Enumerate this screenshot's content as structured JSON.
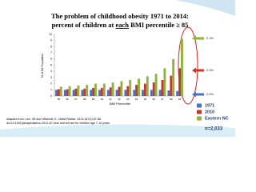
{
  "chart_data": {
    "type": "bar",
    "title_line1": "The problem of childhood obesity 1971 to 2014:",
    "title_line2_pre": "percent of children at ",
    "title_line2_emph": "each",
    "title_line2_post": " BMI percentile ≥ 85",
    "y_label": "% of the Population",
    "x_label": "BMI Percentile",
    "categories": [
      "85",
      "86",
      "87",
      "88",
      "89",
      "90",
      "91",
      "92",
      "93",
      "94",
      "95",
      "96",
      "97",
      "98",
      "99"
    ],
    "series": [
      {
        "name": "1971",
        "color": "#4a6fc7",
        "values": [
          1,
          1,
          1,
          1,
          1,
          1,
          1,
          1,
          1,
          1,
          1,
          1,
          1,
          0.9,
          0.8
        ],
        "value_labels": [
          null,
          null,
          null,
          null,
          null,
          null,
          null,
          null,
          null,
          null,
          null,
          null,
          null,
          null,
          "0.8%"
        ]
      },
      {
        "name": "2010",
        "color": "#c0392b",
        "values": [
          1.1,
          1.1,
          1.2,
          1.2,
          1.3,
          1.3,
          1.4,
          1.5,
          1.6,
          1.8,
          2,
          2.2,
          2.6,
          3.3,
          4.5
        ],
        "value_labels": [
          null,
          null,
          null,
          null,
          null,
          null,
          null,
          null,
          null,
          null,
          null,
          null,
          null,
          null,
          "4.5%"
        ]
      },
      {
        "name": "Eastern NC",
        "color": "#8cb33e",
        "values": [
          1.5,
          1.6,
          1.7,
          1.8,
          2,
          2,
          2.2,
          2.4,
          2.6,
          2.8,
          3.2,
          3.6,
          4.5,
          6,
          9.3
        ],
        "value_labels": [
          null,
          null,
          null,
          null,
          null,
          null,
          null,
          null,
          null,
          null,
          null,
          null,
          null,
          null,
          "9.3%"
        ]
      }
    ],
    "legend_note": "n=2,033",
    "ylim": [
      0,
      10
    ],
    "yticks": [
      0,
      1,
      2,
      3,
      4,
      5,
      6,
      7,
      8,
      9,
      10
    ],
    "source_line1": "Adapted from: Lee, JM and Villarreal, E. JAMA Pediatr. 2013;167(1):87-88.",
    "source_line2": "doi:10.1001/jamapediatrics.2013.42; blue and red are for children age 7-10 years"
  }
}
